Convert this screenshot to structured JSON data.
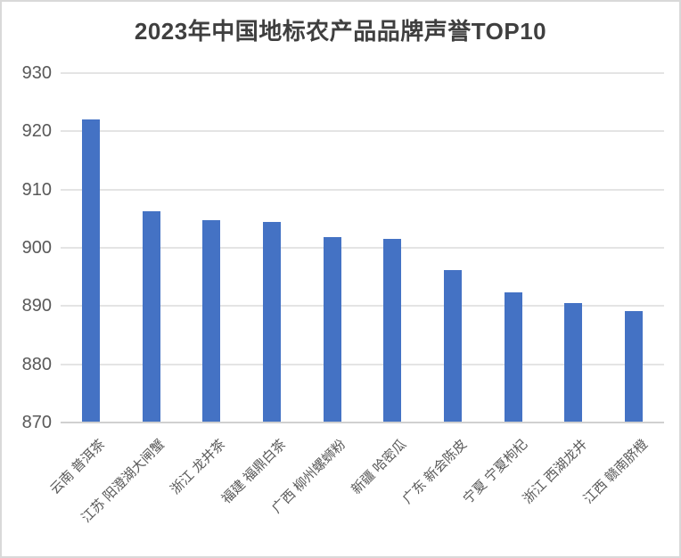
{
  "title": "2023年中国地标农产品品牌声誉TOP10",
  "colors": {
    "bar": "#4472C4",
    "gridline": "#E4E4E4",
    "axis_line": "#D0D0D0",
    "axis_text": "#595959",
    "title_text": "#3F3F3F",
    "frame_border": "#D9D9D9",
    "background": "#FFFFFF"
  },
  "chart_data": {
    "type": "bar",
    "title": "2023年中国地标农产品品牌声誉TOP10",
    "categories": [
      "云南 普洱茶",
      "江苏 阳澄湖大闸蟹",
      "浙江 龙井茶",
      "福建 福鼎白茶",
      "广西 柳州螺蛳粉",
      "新疆 哈密瓜",
      "广东 新会陈皮",
      "宁夏 宁夏枸杞",
      "浙江 西湖龙井",
      "江西 赣南脐橙"
    ],
    "values": [
      922.1,
      906.3,
      904.7,
      904.5,
      901.9,
      901.6,
      896.1,
      892.3,
      890.5,
      889.1
    ],
    "xlabel": "",
    "ylabel": "",
    "ylim": [
      870,
      930
    ],
    "yticks": [
      870,
      880,
      890,
      900,
      910,
      920,
      930
    ],
    "grid": true,
    "legend": false,
    "x_tick_rotation_deg": 45,
    "bar_color": "#4472C4"
  }
}
